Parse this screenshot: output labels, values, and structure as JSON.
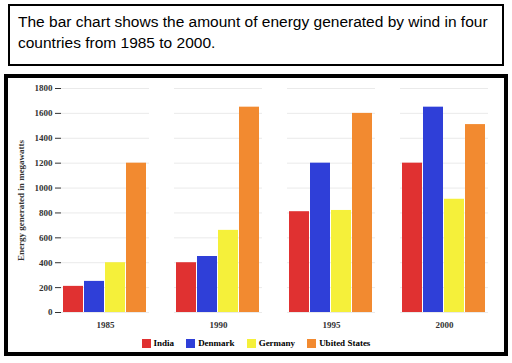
{
  "chart_data": {
    "type": "bar",
    "title": "The bar chart shows the amount of energy generated by wind in four countries from 1985 to 2000.",
    "y_label": "Energy generated in megawatts",
    "categories": [
      "1985",
      "1990",
      "1995",
      "2000"
    ],
    "series": [
      {
        "name": "India",
        "color": "#e03131",
        "values": [
          210,
          400,
          810,
          1200
        ]
      },
      {
        "name": "Denmark",
        "color": "#2f3fd8",
        "values": [
          250,
          450,
          1200,
          1650
        ]
      },
      {
        "name": "Germany",
        "color": "#f5f03a",
        "values": [
          400,
          660,
          820,
          910
        ]
      },
      {
        "name": "Ubited States",
        "color": "#f28a30",
        "values": [
          1200,
          1650,
          1600,
          1510
        ]
      }
    ],
    "ylim": [
      0,
      1800
    ],
    "yticks": [
      0,
      200,
      400,
      600,
      800,
      1000,
      1200,
      1400,
      1600,
      1800
    ],
    "grid": true,
    "legend": "bottom"
  }
}
